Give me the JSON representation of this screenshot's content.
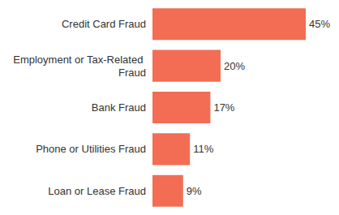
{
  "chart_data": {
    "type": "bar",
    "orientation": "horizontal",
    "categories": [
      "Credit Card Fraud",
      "Employment or Tax-Related Fraud",
      "Bank Fraud",
      "Phone or Utilities Fraud",
      "Loan or Lease Fraud"
    ],
    "values": [
      45,
      20,
      17,
      11,
      9
    ],
    "value_labels": [
      "45%",
      "20%",
      "17%",
      "11%",
      "9%"
    ],
    "color": "#f26d53",
    "xlim": [
      0,
      45
    ],
    "grid": false,
    "data_labels": true,
    "tick_labels": "y"
  }
}
